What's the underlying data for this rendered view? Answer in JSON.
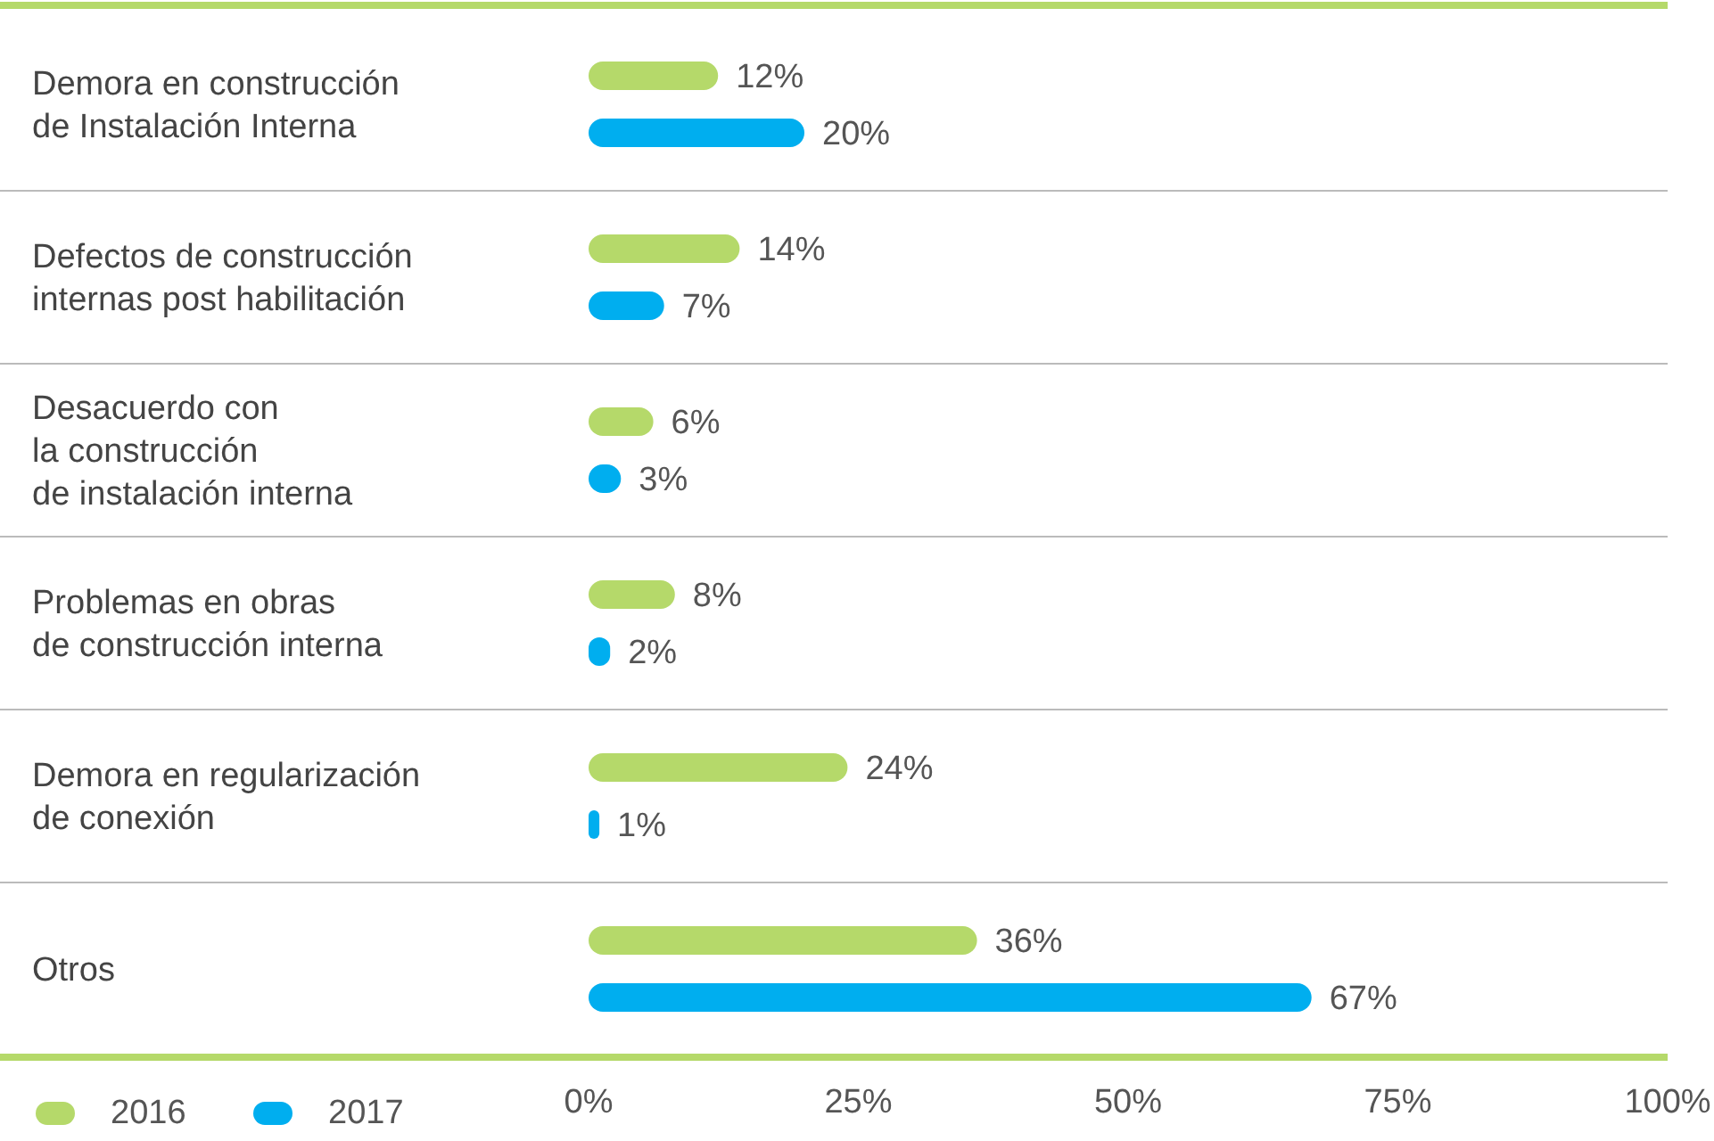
{
  "chart_data": {
    "type": "bar",
    "orientation": "horizontal",
    "categories": [
      "Demora en construcción\nde Instalación Interna",
      "Defectos de construcción\ninternas post habilitación",
      "Desacuerdo con\nla construcción\nde instalación interna",
      "Problemas en obras\nde construcción interna",
      "Demora en regularización\nde conexión",
      "Otros"
    ],
    "series": [
      {
        "name": "2016",
        "color": "#b5d96a",
        "values": [
          12,
          14,
          6,
          8,
          24,
          36
        ],
        "value_labels": [
          "12%",
          "14%",
          "6%",
          "8%",
          "24%",
          "36%"
        ]
      },
      {
        "name": "2017",
        "color": "#00aeef",
        "values": [
          20,
          7,
          3,
          2,
          1,
          67
        ],
        "value_labels": [
          "20%",
          "7%",
          "3%",
          "2%",
          "1%",
          "67%"
        ]
      }
    ],
    "xlim": [
      0,
      100
    ],
    "xticks": [
      {
        "value": 0,
        "label": "0%"
      },
      {
        "value": 25,
        "label": "25%"
      },
      {
        "value": 50,
        "label": "50%"
      },
      {
        "value": 75,
        "label": "75%"
      },
      {
        "value": 100,
        "label": "100%"
      }
    ],
    "legend": "bottom left",
    "grid": false
  }
}
